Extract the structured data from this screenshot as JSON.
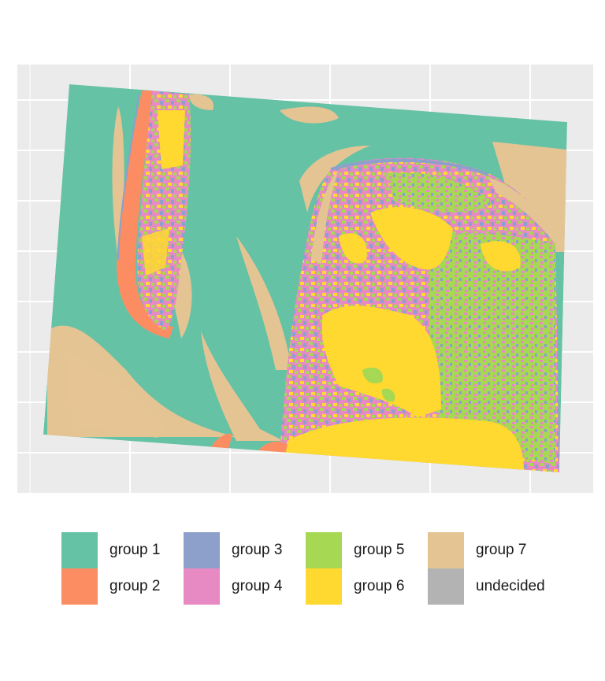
{
  "legend": {
    "items": [
      {
        "label": "group 1",
        "color": "#66c2a5"
      },
      {
        "label": "group 2",
        "color": "#fc8d62"
      },
      {
        "label": "group 3",
        "color": "#8da0cb"
      },
      {
        "label": "group 4",
        "color": "#e78ac3"
      },
      {
        "label": "group 5",
        "color": "#a6d854"
      },
      {
        "label": "group 6",
        "color": "#ffd92f"
      },
      {
        "label": "group 7",
        "color": "#e5c494"
      },
      {
        "label": "undecided",
        "color": "#b3b3b3"
      }
    ]
  },
  "map": {
    "panel_background": "#ebebeb",
    "gridline_color": "#ffffff"
  }
}
